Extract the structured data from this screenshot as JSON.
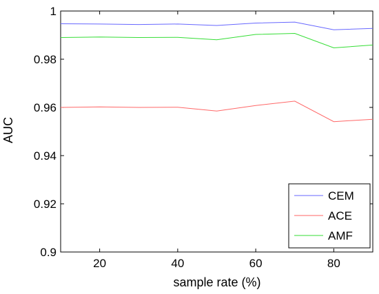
{
  "chart_data": {
    "type": "line",
    "title": "",
    "xlabel": "sample rate (%)",
    "ylabel": "AUC",
    "xlim": [
      10,
      90
    ],
    "ylim": [
      0.9,
      1.0
    ],
    "xticks": [
      20,
      40,
      60,
      80
    ],
    "xtick_labels": [
      "20",
      "40",
      "60",
      "80"
    ],
    "yticks": [
      0.9,
      0.92,
      0.94,
      0.96,
      0.98,
      1.0
    ],
    "ytick_labels": [
      "0.9",
      "0.92",
      "0.94",
      "0.96",
      "0.98",
      "1"
    ],
    "grid": false,
    "legend_position": "bottom-right",
    "x": [
      10,
      20,
      30,
      40,
      50,
      60,
      70,
      80,
      90
    ],
    "series": [
      {
        "name": "CEM",
        "color": "#6666ff",
        "values": [
          0.9947,
          0.9946,
          0.9944,
          0.9946,
          0.994,
          0.995,
          0.9954,
          0.9922,
          0.9928
        ]
      },
      {
        "name": "ACE",
        "color": "#ff6666",
        "values": [
          0.96,
          0.9602,
          0.96,
          0.9601,
          0.9585,
          0.9608,
          0.9626,
          0.9541,
          0.9551
        ]
      },
      {
        "name": "AMF",
        "color": "#33dd33",
        "values": [
          0.989,
          0.9892,
          0.989,
          0.9891,
          0.9881,
          0.9903,
          0.9907,
          0.9847,
          0.9859
        ]
      }
    ]
  }
}
